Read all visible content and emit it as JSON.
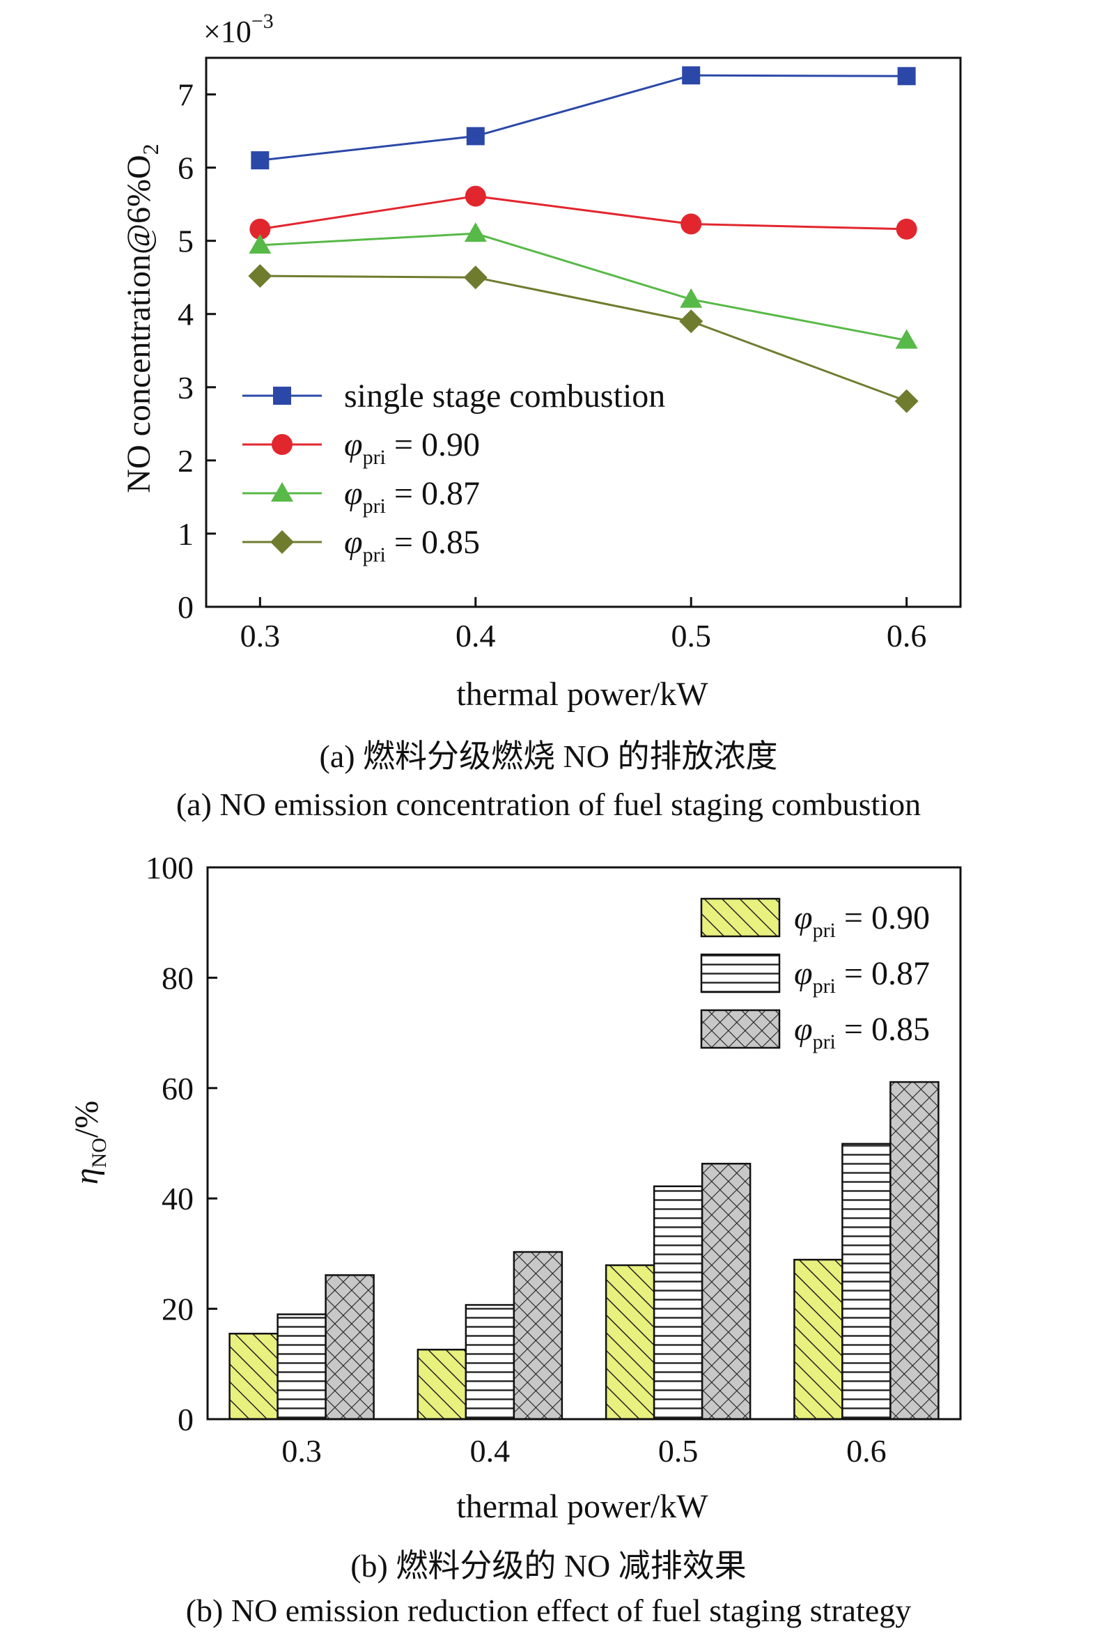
{
  "chart_data": [
    {
      "type": "line",
      "xlabel": "thermal power/kW",
      "ylabel_parts": {
        "main": "NO concentration@6%O",
        "sub": "2"
      },
      "y_multiplier": {
        "base": "×10",
        "exp": "−3"
      },
      "x": [
        0.3,
        0.4,
        0.5,
        0.6
      ],
      "x_ticks": [
        "0.3",
        "0.4",
        "0.5",
        "0.6"
      ],
      "xlim": [
        0.275,
        0.625
      ],
      "ylim": [
        0,
        7.5
      ],
      "y_ticks": [
        "0",
        "1",
        "2",
        "3",
        "4",
        "5",
        "6",
        "7"
      ],
      "grid": false,
      "legend_position": "bottom-left",
      "series": [
        {
          "name": "single stage combustion",
          "marker": "square",
          "color": "#2b48a8",
          "values": [
            6.1,
            6.43,
            7.26,
            7.25
          ]
        },
        {
          "name_symbol": "φ",
          "name_sub": "pri",
          "name_value": " = 0.90",
          "marker": "circle",
          "color": "#e2262e",
          "values": [
            5.16,
            5.61,
            5.23,
            5.16
          ]
        },
        {
          "name_symbol": "φ",
          "name_sub": "pri",
          "name_value": " = 0.87",
          "marker": "triangle",
          "color": "#57b947",
          "values": [
            4.94,
            5.1,
            4.2,
            3.64
          ]
        },
        {
          "name_symbol": "φ",
          "name_sub": "pri",
          "name_value": " = 0.85",
          "marker": "diamond",
          "color": "#6f7c2e",
          "values": [
            4.52,
            4.5,
            3.9,
            2.81
          ]
        }
      ],
      "caption_cn": "(a) 燃料分级燃烧 NO 的排放浓度",
      "caption_en": "(a) NO emission concentration of fuel staging combustion"
    },
    {
      "type": "bar",
      "xlabel": "thermal power/kW",
      "ylabel_parts": {
        "main": "η",
        "sub": "NO",
        "unit": "/%"
      },
      "categories": [
        "0.3",
        "0.4",
        "0.5",
        "0.6"
      ],
      "ylim": [
        0,
        100
      ],
      "y_ticks": [
        "0",
        "20",
        "40",
        "60",
        "80",
        "100"
      ],
      "grid": false,
      "legend_position": "top-right",
      "series": [
        {
          "name_symbol": "φ",
          "name_sub": "pri",
          "name_value": " = 0.90",
          "pattern": "diagonal-hatch",
          "fill": "#e8f07e",
          "values": [
            15.5,
            12.6,
            27.9,
            28.9
          ]
        },
        {
          "name_symbol": "φ",
          "name_sub": "pri",
          "name_value": " = 0.87",
          "pattern": "horizontal-lines",
          "fill": "#ffffff",
          "values": [
            19.0,
            20.7,
            42.2,
            49.9
          ]
        },
        {
          "name_symbol": "φ",
          "name_sub": "pri",
          "name_value": " = 0.85",
          "pattern": "crosshatch",
          "fill": "#c8c8c8",
          "values": [
            26.1,
            30.3,
            46.3,
            61.1
          ]
        }
      ],
      "caption_cn": "(b) 燃料分级的 NO 减排效果",
      "caption_en": "(b) NO emission reduction effect of fuel staging strategy"
    }
  ]
}
